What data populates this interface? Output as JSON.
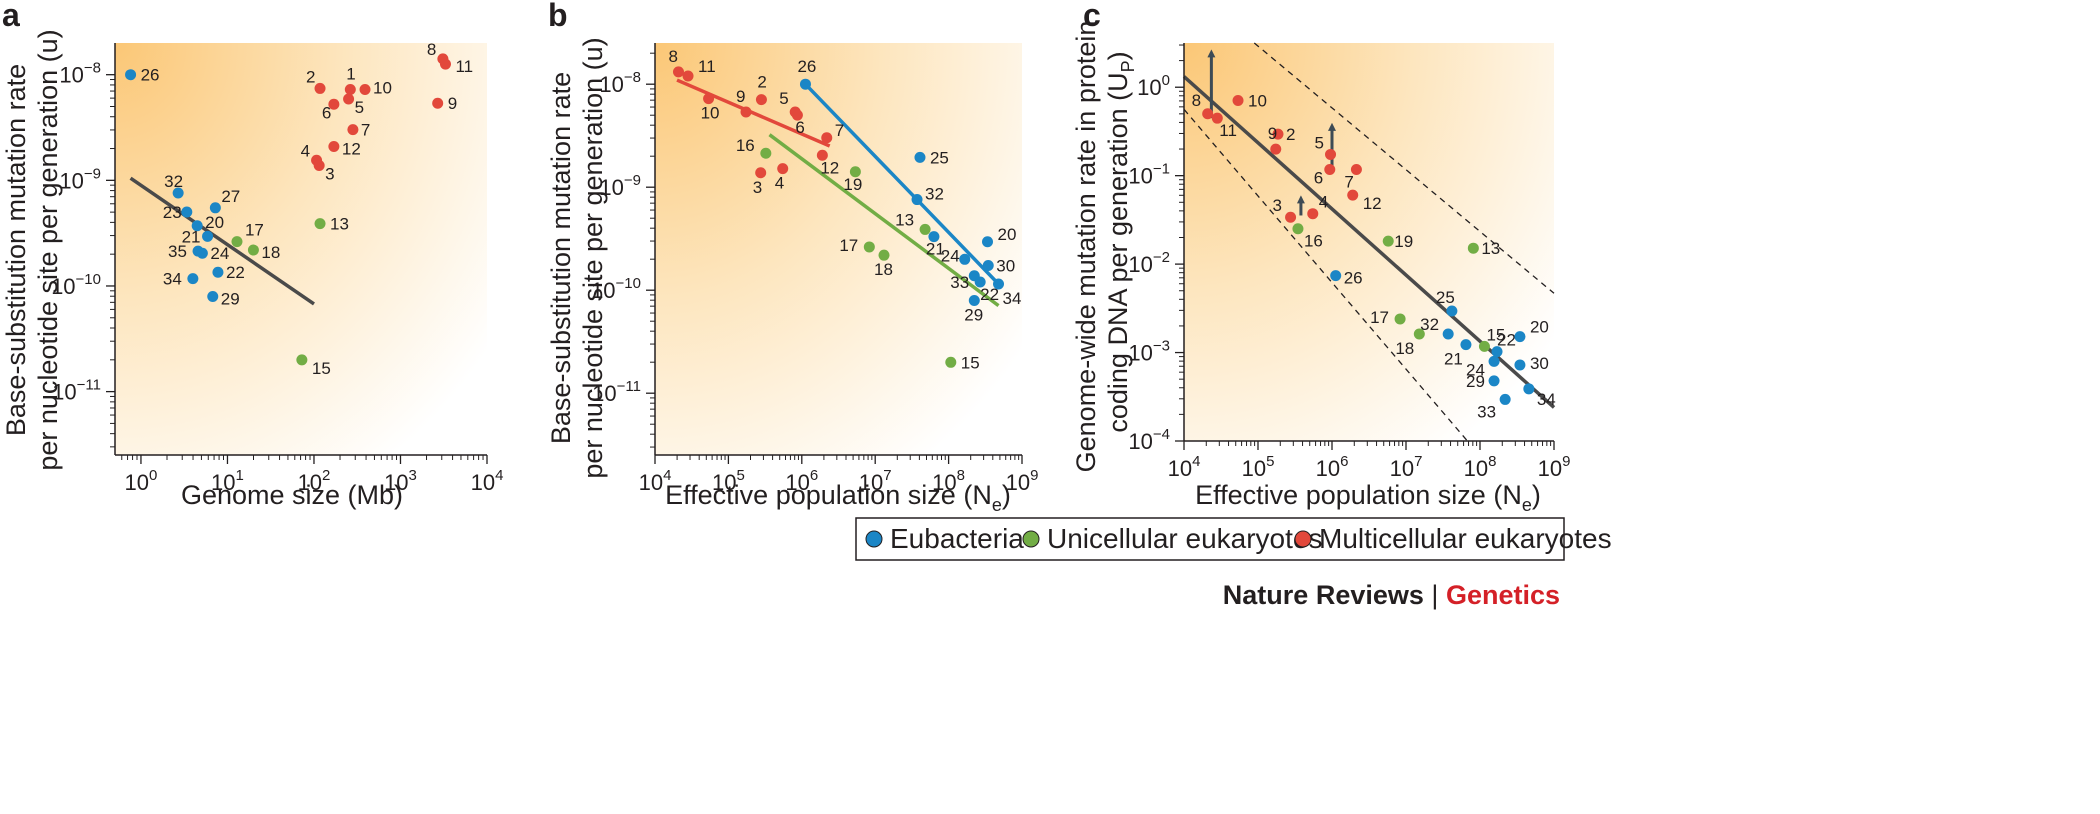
{
  "colors": {
    "eubacteria": "#1b86c6",
    "unicellular": "#72ad45",
    "multicellular": "#e2483b",
    "regression": "#4a4a4a",
    "arrow": "#3d4b55",
    "brand_red": "#d42027",
    "gradient_warm": "#fbd28a"
  },
  "chart_data": [
    {
      "type": "scatter",
      "panel": "a",
      "xlabel": "Genome size (Mb)",
      "ylabel_line1": "Base-substitution mutation rate",
      "ylabel_line2": "per nucleotide site per generation (u)",
      "xscale": "log",
      "yscale": "log",
      "xlim_log10": [
        -0.3,
        4.0
      ],
      "ylim_log10": [
        -11.6,
        -7.7
      ],
      "xticks": [
        {
          "label": "10^0",
          "value_log10": 0
        },
        {
          "label": "10^1",
          "value_log10": 1
        },
        {
          "label": "10^2",
          "value_log10": 2
        },
        {
          "label": "10^3",
          "value_log10": 3
        },
        {
          "label": "10^4",
          "value_log10": 4
        }
      ],
      "yticks": [
        {
          "label": "10^−11",
          "value_log10": -11
        },
        {
          "label": "10^−10",
          "value_log10": -10
        },
        {
          "label": "10^−9",
          "value_log10": -9
        },
        {
          "label": "10^−8",
          "value_log10": -8
        }
      ],
      "points": [
        {
          "id": "26",
          "group": "eubacteria",
          "x": -0.12,
          "y": -8.0
        },
        {
          "id": "32",
          "group": "eubacteria",
          "x": 0.43,
          "y": -9.12
        },
        {
          "id": "23",
          "group": "eubacteria",
          "x": 0.53,
          "y": -9.3
        },
        {
          "id": "27",
          "group": "eubacteria",
          "x": 0.86,
          "y": -9.26
        },
        {
          "id": "20",
          "group": "eubacteria",
          "x": 0.65,
          "y": -9.43
        },
        {
          "id": "21",
          "group": "eubacteria",
          "x": 0.77,
          "y": -9.53
        },
        {
          "id": "35",
          "group": "eubacteria",
          "x": 0.66,
          "y": -9.67
        },
        {
          "id": "24",
          "group": "eubacteria",
          "x": 0.71,
          "y": -9.69
        },
        {
          "id": "22",
          "group": "eubacteria",
          "x": 0.89,
          "y": -9.87
        },
        {
          "id": "34",
          "group": "eubacteria",
          "x": 0.6,
          "y": -9.93
        },
        {
          "id": "29",
          "group": "eubacteria",
          "x": 0.83,
          "y": -10.1
        },
        {
          "id": "17",
          "group": "unicellular",
          "x": 1.11,
          "y": -9.58
        },
        {
          "id": "18",
          "group": "unicellular",
          "x": 1.3,
          "y": -9.66
        },
        {
          "id": "13",
          "group": "unicellular",
          "x": 2.07,
          "y": -9.41
        },
        {
          "id": "15",
          "group": "unicellular",
          "x": 1.86,
          "y": -10.7
        },
        {
          "id": "2",
          "group": "multicellular",
          "x": 2.07,
          "y": -8.13
        },
        {
          "id": "1",
          "group": "multicellular",
          "x": 2.42,
          "y": -8.14
        },
        {
          "id": "10",
          "group": "multicellular",
          "x": 2.59,
          "y": -8.14
        },
        {
          "id": "6",
          "group": "multicellular",
          "x": 2.23,
          "y": -8.28
        },
        {
          "id": "5",
          "group": "multicellular",
          "x": 2.4,
          "y": -8.23
        },
        {
          "id": "7",
          "group": "multicellular",
          "x": 2.45,
          "y": -8.52
        },
        {
          "id": "12",
          "group": "multicellular",
          "x": 2.23,
          "y": -8.68
        },
        {
          "id": "4",
          "group": "multicellular",
          "x": 2.03,
          "y": -8.81
        },
        {
          "id": "3",
          "group": "multicellular",
          "x": 2.06,
          "y": -8.86
        },
        {
          "id": "8",
          "group": "multicellular",
          "x": 3.49,
          "y": -7.85
        },
        {
          "id": "11",
          "group": "multicellular",
          "x": 3.52,
          "y": -7.9
        },
        {
          "id": "9",
          "group": "multicellular",
          "x": 3.43,
          "y": -8.27
        }
      ],
      "lines": [
        {
          "group": "regression",
          "x1": -0.12,
          "y1": -8.98,
          "x2": 2.0,
          "y2": -10.17
        }
      ]
    },
    {
      "type": "scatter",
      "panel": "b",
      "xlabel": "Effective population size (N",
      "xlabel_sub": "e",
      "xlabel_end": ")",
      "ylabel_line1": "Base-substitution mutation rate",
      "ylabel_line2": "per nucleotide site per generation (u)",
      "xscale": "log",
      "yscale": "log",
      "xlim_log10": [
        4.0,
        9.0
      ],
      "ylim_log10": [
        -11.6,
        -7.6
      ],
      "xticks": [
        {
          "label": "10^4",
          "value_log10": 4
        },
        {
          "label": "10^5",
          "value_log10": 5
        },
        {
          "label": "10^6",
          "value_log10": 6
        },
        {
          "label": "10^7",
          "value_log10": 7
        },
        {
          "label": "10^8",
          "value_log10": 8
        },
        {
          "label": "10^9",
          "value_log10": 9
        }
      ],
      "yticks": [
        {
          "label": "10^−11",
          "value_log10": -11
        },
        {
          "label": "10^−10",
          "value_log10": -10
        },
        {
          "label": "10^−9",
          "value_log10": -9
        },
        {
          "label": "10^−8",
          "value_log10": -8
        }
      ],
      "points": [
        {
          "id": "26",
          "group": "eubacteria",
          "x": 6.05,
          "y": -8.0
        },
        {
          "id": "25",
          "group": "eubacteria",
          "x": 7.61,
          "y": -8.71
        },
        {
          "id": "32",
          "group": "eubacteria",
          "x": 7.57,
          "y": -9.12
        },
        {
          "id": "21",
          "group": "eubacteria",
          "x": 7.8,
          "y": -9.48
        },
        {
          "id": "20",
          "group": "eubacteria",
          "x": 8.53,
          "y": -9.53
        },
        {
          "id": "24",
          "group": "eubacteria",
          "x": 8.22,
          "y": -9.7
        },
        {
          "id": "30",
          "group": "eubacteria",
          "x": 8.54,
          "y": -9.76
        },
        {
          "id": "33",
          "group": "eubacteria",
          "x": 8.35,
          "y": -9.86
        },
        {
          "id": "22",
          "group": "eubacteria",
          "x": 8.43,
          "y": -9.92
        },
        {
          "id": "34",
          "group": "eubacteria",
          "x": 8.68,
          "y": -9.94
        },
        {
          "id": "29",
          "group": "eubacteria",
          "x": 8.35,
          "y": -10.1
        },
        {
          "id": "16",
          "group": "unicellular",
          "x": 5.51,
          "y": -8.67
        },
        {
          "id": "19",
          "group": "unicellular",
          "x": 6.73,
          "y": -8.85
        },
        {
          "id": "13",
          "group": "unicellular",
          "x": 7.68,
          "y": -9.41
        },
        {
          "id": "17",
          "group": "unicellular",
          "x": 6.92,
          "y": -9.58
        },
        {
          "id": "18",
          "group": "unicellular",
          "x": 7.12,
          "y": -9.66
        },
        {
          "id": "15",
          "group": "unicellular",
          "x": 8.03,
          "y": -10.7
        },
        {
          "id": "8",
          "group": "multicellular",
          "x": 4.32,
          "y": -7.88
        },
        {
          "id": "11",
          "group": "multicellular",
          "x": 4.45,
          "y": -7.92
        },
        {
          "id": "10",
          "group": "multicellular",
          "x": 4.73,
          "y": -8.14
        },
        {
          "id": "9",
          "group": "multicellular",
          "x": 5.24,
          "y": -8.27
        },
        {
          "id": "2",
          "group": "multicellular",
          "x": 5.45,
          "y": -8.15
        },
        {
          "id": "5",
          "group": "multicellular",
          "x": 5.91,
          "y": -8.27
        },
        {
          "id": "6",
          "group": "multicellular",
          "x": 5.94,
          "y": -8.3
        },
        {
          "id": "7",
          "group": "multicellular",
          "x": 6.34,
          "y": -8.52
        },
        {
          "id": "12",
          "group": "multicellular",
          "x": 6.28,
          "y": -8.69
        },
        {
          "id": "3",
          "group": "multicellular",
          "x": 5.44,
          "y": -8.86
        },
        {
          "id": "4",
          "group": "multicellular",
          "x": 5.74,
          "y": -8.82
        }
      ],
      "lines": [
        {
          "group": "multicellular",
          "x1": 4.3,
          "y1": -7.96,
          "x2": 6.38,
          "y2": -8.6
        },
        {
          "group": "eubacteria",
          "x1": 6.05,
          "y1": -8.0,
          "x2": 8.68,
          "y2": -9.94
        },
        {
          "group": "unicellular",
          "x1": 5.56,
          "y1": -8.49,
          "x2": 8.68,
          "y2": -10.15
        }
      ]
    },
    {
      "type": "scatter",
      "panel": "c",
      "xlabel": "Effective population size (N",
      "xlabel_sub": "e",
      "xlabel_end": ")",
      "ylabel_line1": "Genome-wide mutation rate in protein-",
      "ylabel_line2": "coding DNA per generation (U",
      "ylabel_line2_sub": "P",
      "ylabel_line2_end": ")",
      "xscale": "log",
      "yscale": "log",
      "xlim_log10": [
        4.0,
        9.0
      ],
      "ylim_log10": [
        -4.0,
        0.5
      ],
      "xticks": [
        {
          "label": "10^4",
          "value_log10": 4
        },
        {
          "label": "10^5",
          "value_log10": 5
        },
        {
          "label": "10^6",
          "value_log10": 6
        },
        {
          "label": "10^7",
          "value_log10": 7
        },
        {
          "label": "10^8",
          "value_log10": 8
        },
        {
          "label": "10^9",
          "value_log10": 9
        }
      ],
      "yticks": [
        {
          "label": "10^−4",
          "value_log10": -4
        },
        {
          "label": "10^−3",
          "value_log10": -3
        },
        {
          "label": "10^−2",
          "value_log10": -2
        },
        {
          "label": "10^−1",
          "value_log10": -1
        },
        {
          "label": "10^0",
          "value_log10": 0
        }
      ],
      "points": [
        {
          "id": "8",
          "group": "multicellular",
          "x": 4.32,
          "y": -0.3
        },
        {
          "id": "11",
          "group": "multicellular",
          "x": 4.45,
          "y": -0.35
        },
        {
          "id": "10",
          "group": "multicellular",
          "x": 4.73,
          "y": -0.15
        },
        {
          "id": "2",
          "group": "multicellular",
          "x": 5.27,
          "y": -0.53
        },
        {
          "id": "9",
          "group": "multicellular",
          "x": 5.24,
          "y": -0.7
        },
        {
          "id": "5",
          "group": "multicellular",
          "x": 5.98,
          "y": -0.76
        },
        {
          "id": "6",
          "group": "multicellular",
          "x": 5.97,
          "y": -0.93
        },
        {
          "id": "7",
          "group": "multicellular",
          "x": 6.33,
          "y": -0.93
        },
        {
          "id": "12",
          "group": "multicellular",
          "x": 6.28,
          "y": -1.22
        },
        {
          "id": "3",
          "group": "multicellular",
          "x": 5.44,
          "y": -1.47
        },
        {
          "id": "4",
          "group": "multicellular",
          "x": 5.74,
          "y": -1.43
        },
        {
          "id": "16",
          "group": "unicellular",
          "x": 5.54,
          "y": -1.6
        },
        {
          "id": "19",
          "group": "unicellular",
          "x": 6.76,
          "y": -1.74
        },
        {
          "id": "13",
          "group": "unicellular",
          "x": 7.91,
          "y": -1.82
        },
        {
          "id": "17",
          "group": "unicellular",
          "x": 6.92,
          "y": -2.62
        },
        {
          "id": "18",
          "group": "unicellular",
          "x": 7.18,
          "y": -2.79
        },
        {
          "id": "15",
          "group": "unicellular",
          "x": 8.06,
          "y": -2.93
        },
        {
          "id": "26",
          "group": "eubacteria",
          "x": 6.05,
          "y": -2.13
        },
        {
          "id": "25",
          "group": "eubacteria",
          "x": 7.62,
          "y": -2.53
        },
        {
          "id": "32",
          "group": "eubacteria",
          "x": 7.57,
          "y": -2.79
        },
        {
          "id": "21",
          "group": "eubacteria",
          "x": 7.81,
          "y": -2.91
        },
        {
          "id": "22",
          "group": "eubacteria",
          "x": 8.23,
          "y": -2.99
        },
        {
          "id": "20",
          "group": "eubacteria",
          "x": 8.54,
          "y": -2.82
        },
        {
          "id": "30",
          "group": "eubacteria",
          "x": 8.54,
          "y": -3.14
        },
        {
          "id": "24",
          "group": "eubacteria",
          "x": 8.19,
          "y": -3.1
        },
        {
          "id": "29",
          "group": "eubacteria",
          "x": 8.19,
          "y": -3.32
        },
        {
          "id": "34",
          "group": "eubacteria",
          "x": 8.66,
          "y": -3.41
        },
        {
          "id": "33",
          "group": "eubacteria",
          "x": 8.34,
          "y": -3.53
        }
      ],
      "lines": [
        {
          "group": "regression",
          "x1": 4.0,
          "y1": 0.12,
          "x2": 9.0,
          "y2": -3.62
        },
        {
          "group": "dashed",
          "x1": 4.95,
          "y1": 0.5,
          "x2": 9.0,
          "y2": -2.33
        },
        {
          "group": "dashed",
          "x1": 4.0,
          "y1": -0.25,
          "x2": 7.83,
          "y2": -4.0
        }
      ],
      "arrows": [
        {
          "x": 4.37,
          "y_from": -0.35,
          "y_to": 0.45
        },
        {
          "x": 6.0,
          "y_from": -0.93,
          "y_to": -0.38
        },
        {
          "x": 5.58,
          "y_from": -1.45,
          "y_to": -1.2
        }
      ]
    }
  ],
  "panels": {
    "a": {
      "letter": "a"
    },
    "b": {
      "letter": "b"
    },
    "c": {
      "letter": "c"
    }
  },
  "legend": {
    "items": [
      {
        "group": "eubacteria",
        "label": "Eubacteria"
      },
      {
        "group": "unicellular",
        "label": "Unicellular eukaryotes"
      },
      {
        "group": "multicellular",
        "label": "Multicellular eukaryotes"
      }
    ]
  },
  "footer": {
    "brand_part1": "Nature Reviews",
    "separator": "|",
    "brand_part2": "Genetics"
  }
}
